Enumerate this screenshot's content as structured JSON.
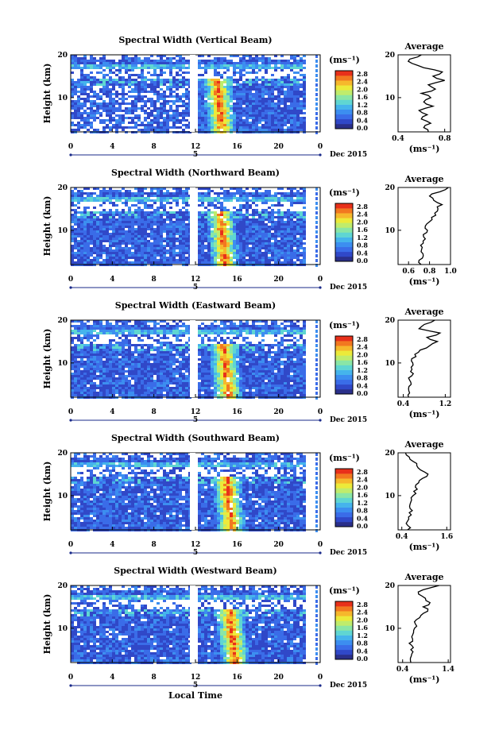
{
  "chart_data": [
    {
      "type": "heatmap",
      "title": "Spectral Width (Vertical Beam)",
      "ylabel": "Height (km)",
      "x_ticks": [
        "0",
        "4",
        "8",
        "12",
        "16",
        "20",
        "0"
      ],
      "y_ticks": [
        "20",
        "10"
      ],
      "ylim": [
        2,
        20
      ],
      "date_label": "5",
      "date_suffix": "Dec 2015",
      "colorbar": {
        "label": "(ms⁻¹)",
        "ticks": [
          "2.8",
          "2.4",
          "2.0",
          "1.6",
          "1.2",
          "0.8",
          "0.4",
          "0.0"
        ]
      },
      "profile": {
        "title": "Average",
        "xlabel": "(ms⁻¹)",
        "x_ticks": [
          "0.4",
          "0.8"
        ],
        "y_ticks": [
          "20",
          "10"
        ],
        "xlim": [
          0.4,
          0.85
        ],
        "heights": [
          2,
          3,
          4,
          5,
          6,
          7,
          8,
          9,
          10,
          11,
          12,
          13,
          14,
          15,
          16,
          17,
          18,
          19,
          20
        ],
        "values": [
          0.66,
          0.62,
          0.68,
          0.6,
          0.65,
          0.58,
          0.7,
          0.62,
          0.68,
          0.6,
          0.72,
          0.66,
          0.8,
          0.7,
          0.78,
          0.62,
          0.52,
          0.5,
          0.6
        ]
      }
    },
    {
      "type": "heatmap",
      "title": "Spectral Width (Northward Beam)",
      "ylabel": "Height (km)",
      "x_ticks": [
        "0",
        "4",
        "8",
        "12",
        "16",
        "20",
        "0"
      ],
      "y_ticks": [
        "20",
        "10"
      ],
      "ylim": [
        2,
        20
      ],
      "date_label": "5",
      "date_suffix": "Dec 2015",
      "colorbar": {
        "label": "(ms⁻¹)",
        "ticks": [
          "2.8",
          "2.4",
          "2.0",
          "1.6",
          "1.2",
          "0.8",
          "0.4",
          "0.0"
        ]
      },
      "profile": {
        "title": "Average",
        "xlabel": "(ms⁻¹)",
        "x_ticks": [
          "0.6",
          "0.8",
          "1.0"
        ],
        "y_ticks": [
          "20",
          "10"
        ],
        "xlim": [
          0.5,
          1.0
        ],
        "heights": [
          2,
          3,
          4,
          5,
          6,
          7,
          8,
          9,
          10,
          11,
          12,
          13,
          14,
          15,
          16,
          17,
          18,
          19,
          20
        ],
        "values": [
          0.72,
          0.7,
          0.74,
          0.72,
          0.73,
          0.74,
          0.76,
          0.74,
          0.78,
          0.76,
          0.8,
          0.82,
          0.85,
          0.88,
          0.92,
          0.84,
          0.8,
          0.9,
          0.98
        ]
      }
    },
    {
      "type": "heatmap",
      "title": "Spectral Width (Eastward Beam)",
      "ylabel": "Height (km)",
      "x_ticks": [
        "0",
        "4",
        "8",
        "12",
        "16",
        "20",
        "0"
      ],
      "y_ticks": [
        "20",
        "10"
      ],
      "ylim": [
        2,
        20
      ],
      "date_label": "5",
      "date_suffix": "Dec 2015",
      "colorbar": {
        "label": "(ms⁻¹)",
        "ticks": [
          "2.8",
          "2.4",
          "2.0",
          "1.6",
          "1.2",
          "0.8",
          "0.4",
          "0.0"
        ]
      },
      "profile": {
        "title": "Average",
        "xlabel": "(ms⁻¹)",
        "x_ticks": [
          "0.4",
          "1.2"
        ],
        "y_ticks": [
          "20",
          "10"
        ],
        "xlim": [
          0.3,
          1.3
        ],
        "heights": [
          2,
          3,
          4,
          5,
          6,
          7,
          8,
          9,
          10,
          11,
          12,
          13,
          14,
          15,
          16,
          17,
          18,
          19,
          20
        ],
        "values": [
          0.5,
          0.52,
          0.5,
          0.55,
          0.52,
          0.56,
          0.54,
          0.55,
          0.58,
          0.56,
          0.62,
          0.72,
          0.9,
          1.05,
          0.85,
          1.1,
          0.7,
          0.8,
          1.0
        ]
      }
    },
    {
      "type": "heatmap",
      "title": "Spectral Width (Southward Beam)",
      "ylabel": "Height (km)",
      "x_ticks": [
        "0",
        "4",
        "8",
        "12",
        "16",
        "20",
        "0"
      ],
      "y_ticks": [
        "20",
        "10"
      ],
      "ylim": [
        2,
        20
      ],
      "date_label": "5",
      "date_suffix": "Dec 2015",
      "colorbar": {
        "label": "(ms⁻¹)",
        "ticks": [
          "2.8",
          "2.4",
          "2.0",
          "1.6",
          "1.2",
          "0.8",
          "0.4",
          "0.0"
        ]
      },
      "profile": {
        "title": "Average",
        "xlabel": "(ms⁻¹)",
        "x_ticks": [
          "0.4",
          "1.6"
        ],
        "y_ticks": [
          "20",
          "10"
        ],
        "xlim": [
          0.3,
          1.7
        ],
        "heights": [
          2,
          3,
          4,
          5,
          6,
          7,
          8,
          9,
          10,
          11,
          12,
          13,
          14,
          15,
          16,
          17,
          18,
          19,
          20
        ],
        "values": [
          0.55,
          0.56,
          0.55,
          0.58,
          0.6,
          0.62,
          0.62,
          0.66,
          0.7,
          0.72,
          0.76,
          0.85,
          0.95,
          1.1,
          0.9,
          0.8,
          0.7,
          0.6,
          0.5
        ]
      }
    },
    {
      "type": "heatmap",
      "title": "Spectral Width (Westward Beam)",
      "ylabel": "Height (km)",
      "x_ticks": [
        "0",
        "4",
        "8",
        "12",
        "16",
        "20",
        "0"
      ],
      "y_ticks": [
        "20",
        "10"
      ],
      "ylim": [
        2,
        20
      ],
      "date_label": "5",
      "date_suffix": "Dec 2015",
      "colorbar": {
        "label": "(ms⁻¹)",
        "ticks": [
          "2.8",
          "2.4",
          "2.0",
          "1.6",
          "1.2",
          "0.8",
          "0.4",
          "0.0"
        ]
      },
      "profile": {
        "title": "Average",
        "xlabel": "(ms⁻¹)",
        "x_ticks": [
          "0.4",
          "1.4"
        ],
        "y_ticks": [
          "20",
          "10"
        ],
        "xlim": [
          0.3,
          1.45
        ],
        "heights": [
          2,
          3,
          4,
          5,
          6,
          7,
          8,
          9,
          10,
          11,
          12,
          13,
          14,
          15,
          16,
          17,
          18,
          19,
          20
        ],
        "values": [
          0.58,
          0.57,
          0.6,
          0.58,
          0.6,
          0.62,
          0.6,
          0.64,
          0.66,
          0.68,
          0.7,
          0.8,
          0.95,
          0.85,
          1.0,
          0.9,
          0.75,
          0.85,
          1.2
        ]
      }
    }
  ],
  "xlabel": "Local Time",
  "colors": {
    "scale": [
      "#2a2f8a",
      "#3048c8",
      "#3a6ce8",
      "#3c8ef0",
      "#45b4ec",
      "#5fd6d2",
      "#8ae6a6",
      "#c0ec6c",
      "#ecea3a",
      "#f6b82c",
      "#f27820",
      "#e8301a"
    ]
  }
}
